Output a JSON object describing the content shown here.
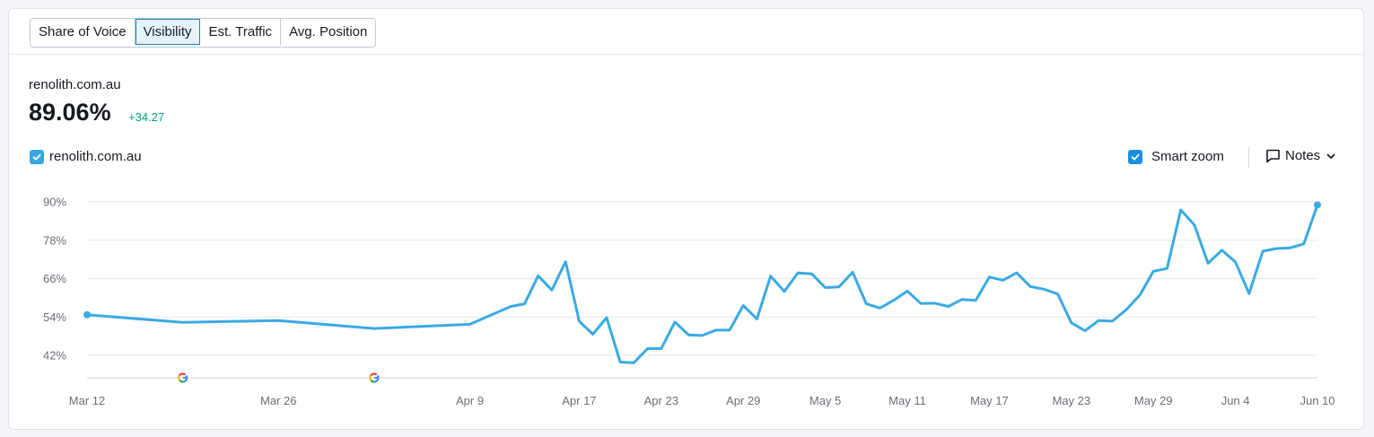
{
  "tabs": [
    {
      "label": "Share of Voice",
      "active": false
    },
    {
      "label": "Visibility",
      "active": true
    },
    {
      "label": "Est. Traffic",
      "active": false
    },
    {
      "label": "Avg. Position",
      "active": false
    }
  ],
  "summary": {
    "domain": "renolith.com.au",
    "value": "89.06%",
    "delta": "+34.27"
  },
  "legend": {
    "series_label": "renolith.com.au",
    "smart_zoom_label": "Smart zoom",
    "notes_label": "Notes"
  },
  "colors": {
    "series": "#3aaae4",
    "accent": "#1a7ebf",
    "positive": "#009f81"
  },
  "icons": {
    "checkbox": "check-icon",
    "notes": "speech-bubble-icon",
    "notes_toggle": "chevron-down-icon",
    "google_update": "google-g-icon"
  },
  "chart_data": {
    "type": "line",
    "title": "",
    "xlabel": "",
    "ylabel": "",
    "ylim": [
      36,
      91
    ],
    "y_ticks": [
      42,
      54,
      66,
      78,
      90
    ],
    "y_tick_labels": [
      "42%",
      "54%",
      "66%",
      "78%",
      "90%"
    ],
    "x_tick_labels": [
      {
        "label": "Mar 12",
        "day": 0
      },
      {
        "label": "Mar 26",
        "day": 14
      },
      {
        "label": "Apr 9",
        "day": 28
      },
      {
        "label": "Apr 17",
        "day": 36
      },
      {
        "label": "Apr 23",
        "day": 42
      },
      {
        "label": "Apr 29",
        "day": 48
      },
      {
        "label": "May 5",
        "day": 54
      },
      {
        "label": "May 11",
        "day": 60
      },
      {
        "label": "May 17",
        "day": 66
      },
      {
        "label": "May 23",
        "day": 72
      },
      {
        "label": "May 29",
        "day": 78
      },
      {
        "label": "Jun 4",
        "day": 84
      },
      {
        "label": "Jun 10",
        "day": 90
      }
    ],
    "x_range": [
      0,
      90.5
    ],
    "grid": true,
    "google_update_markers": [
      7,
      21
    ],
    "series": [
      {
        "name": "renolith.com.au",
        "x": [
          0,
          7,
          14,
          21,
          28,
          31,
          32,
          33,
          34,
          35,
          36,
          37,
          38,
          39,
          40,
          41,
          42,
          43,
          44,
          45,
          46,
          47,
          48,
          49,
          50,
          51,
          52,
          53,
          54,
          55,
          56,
          57,
          58,
          59,
          60,
          61,
          62,
          63,
          64,
          65,
          66,
          67,
          68,
          69,
          70,
          71,
          72,
          73,
          74,
          75,
          76,
          77,
          78,
          79,
          80,
          81,
          82,
          83,
          84,
          85,
          86,
          87,
          88,
          89,
          90
        ],
        "y": [
          54.7,
          52.3,
          52.9,
          50.4,
          51.7,
          57.3,
          58.1,
          66.9,
          62.4,
          71.3,
          52.7,
          48.6,
          53.8,
          39.9,
          39.7,
          44.1,
          44.1,
          52.4,
          48.4,
          48.2,
          49.9,
          49.9,
          57.6,
          53.4,
          66.8,
          62.0,
          67.8,
          67.5,
          63.2,
          63.4,
          68.0,
          58.1,
          56.8,
          59.2,
          62.1,
          58.2,
          58.3,
          57.3,
          59.5,
          59.2,
          66.5,
          65.5,
          67.8,
          63.5,
          62.7,
          61.2,
          52.2,
          49.7,
          52.9,
          52.7,
          56.2,
          60.8,
          68.3,
          69.2,
          87.5,
          82.8,
          70.8,
          74.9,
          71.2,
          61.3,
          74.6,
          75.4,
          75.6,
          76.9,
          89.06
        ]
      }
    ]
  }
}
